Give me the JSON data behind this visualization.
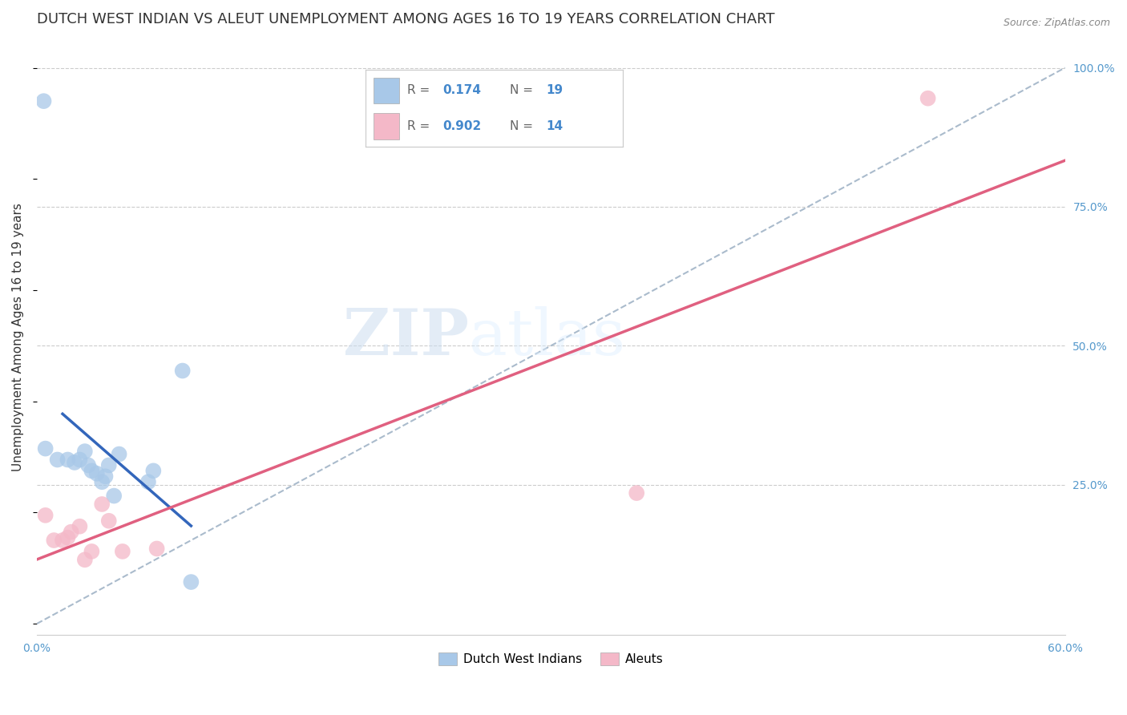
{
  "title": "DUTCH WEST INDIAN VS ALEUT UNEMPLOYMENT AMONG AGES 16 TO 19 YEARS CORRELATION CHART",
  "source": "Source: ZipAtlas.com",
  "ylabel": "Unemployment Among Ages 16 to 19 years",
  "xlim": [
    0.0,
    0.6
  ],
  "ylim": [
    -0.02,
    1.05
  ],
  "yticks_right": [
    0.25,
    0.5,
    0.75,
    1.0
  ],
  "ytick_right_labels": [
    "25.0%",
    "50.0%",
    "75.0%",
    "100.0%"
  ],
  "dutch_west_indian_x": [
    0.004,
    0.005,
    0.012,
    0.018,
    0.022,
    0.025,
    0.028,
    0.03,
    0.032,
    0.035,
    0.038,
    0.04,
    0.042,
    0.045,
    0.048,
    0.065,
    0.068,
    0.085,
    0.09
  ],
  "dutch_west_indian_y": [
    0.94,
    0.315,
    0.295,
    0.295,
    0.29,
    0.295,
    0.31,
    0.285,
    0.275,
    0.27,
    0.255,
    0.265,
    0.285,
    0.23,
    0.305,
    0.255,
    0.275,
    0.455,
    0.075
  ],
  "aleut_x": [
    0.005,
    0.01,
    0.015,
    0.018,
    0.02,
    0.025,
    0.028,
    0.032,
    0.038,
    0.042,
    0.05,
    0.07,
    0.35,
    0.52
  ],
  "aleut_y": [
    0.195,
    0.15,
    0.15,
    0.155,
    0.165,
    0.175,
    0.115,
    0.13,
    0.215,
    0.185,
    0.13,
    0.135,
    0.235,
    0.945
  ],
  "dutch_color": "#a8c8e8",
  "aleut_color": "#f4b8c8",
  "dutch_line_color": "#3366bb",
  "aleut_line_color": "#e06080",
  "ref_line_color": "#aabbcc",
  "background_color": "#ffffff",
  "grid_color": "#cccccc",
  "watermark_zip": "ZIP",
  "watermark_atlas": "atlas",
  "R_dutch": "0.174",
  "N_dutch": "19",
  "R_aleut": "0.902",
  "N_aleut": "14",
  "title_fontsize": 13,
  "axis_label_fontsize": 11,
  "tick_fontsize": 10,
  "legend_fontsize": 12,
  "source_fontsize": 9
}
